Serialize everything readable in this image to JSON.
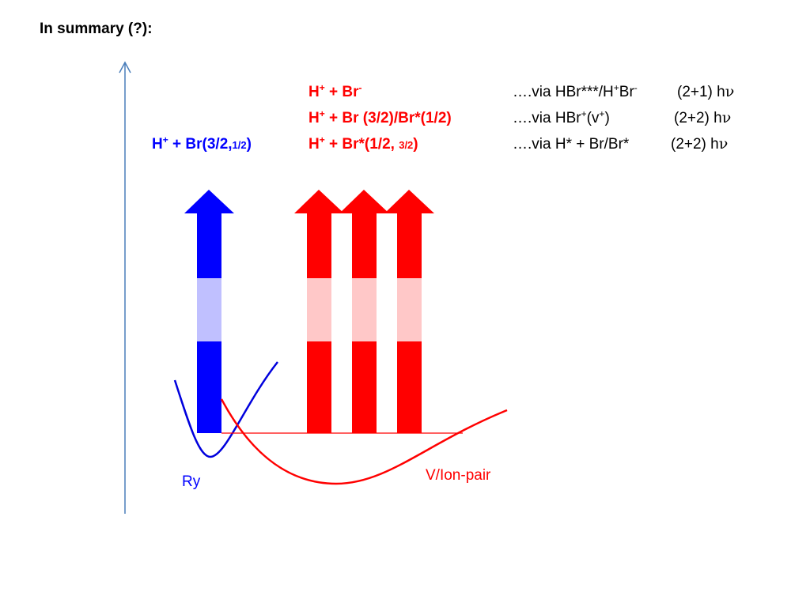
{
  "title": "In summary (?):",
  "blue_label": [
    "H",
    "+",
    " + Br(3/2,",
    "1/2",
    ")"
  ],
  "red_labels": [
    [
      "H",
      "+",
      " + Br",
      "-"
    ],
    [
      "H",
      "+",
      " + Br (3/2)/Br*(1/2)"
    ],
    [
      "H",
      "+",
      " + Br*(1/2, ",
      "3/2",
      ")"
    ]
  ],
  "via_labels": [
    [
      "….via HBr***/H",
      "+",
      "Br",
      "-",
      "(2+1) h",
      "ν"
    ],
    [
      "….via HBr",
      "+",
      "(v",
      "+",
      ")",
      "(2+2) h",
      "ν"
    ],
    [
      "….via H* + Br/Br*",
      "(2+2) h",
      "ν"
    ]
  ],
  "curve_labels": {
    "rydberg": "Ry",
    "ion_pair": "V/Ion-pair"
  }
}
